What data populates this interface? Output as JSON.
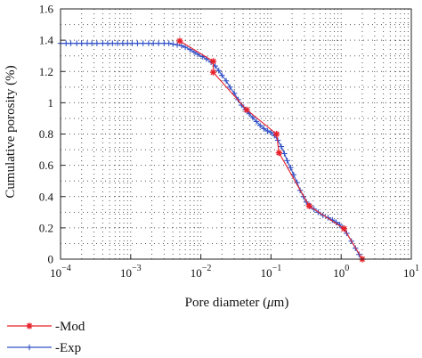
{
  "chart_data": {
    "type": "line",
    "title": "",
    "xlabel_prefix": "Pore diameter (",
    "xlabel_mu": "μ",
    "xlabel_suffix": "m)",
    "ylabel": "Cumulative porosity (%)",
    "x_scale": "log",
    "xlim": [
      0.0001,
      10
    ],
    "ylim": [
      0,
      1.6
    ],
    "x_ticks": [
      {
        "value": 0.0001,
        "base": "10",
        "exp": "−4"
      },
      {
        "value": 0.001,
        "base": "10",
        "exp": "−3"
      },
      {
        "value": 0.01,
        "base": "10",
        "exp": "−2"
      },
      {
        "value": 0.1,
        "base": "10",
        "exp": "−1"
      },
      {
        "value": 1,
        "base": "10",
        "exp": "0"
      },
      {
        "value": 10,
        "base": "10",
        "exp": "1"
      }
    ],
    "y_ticks": [
      {
        "value": 0,
        "label": "0"
      },
      {
        "value": 0.2,
        "label": "0.2"
      },
      {
        "value": 0.4,
        "label": "0.4"
      },
      {
        "value": 0.6,
        "label": "0.6"
      },
      {
        "value": 0.8,
        "label": "0.8"
      },
      {
        "value": 1.0,
        "label": "1"
      },
      {
        "value": 1.2,
        "label": "1.2"
      },
      {
        "value": 1.4,
        "label": "1.4"
      },
      {
        "value": 1.6,
        "label": "1.6"
      }
    ],
    "grid": "dotted minor",
    "legend_position": "bottom-left outside",
    "series": [
      {
        "name": "-Mod",
        "color": "#e8202a",
        "marker": "asterisk",
        "points": [
          [
            0.005,
            1.395
          ],
          [
            0.015,
            1.265
          ],
          [
            0.015,
            1.195
          ],
          [
            0.045,
            0.955
          ],
          [
            0.12,
            0.8
          ],
          [
            0.13,
            0.68
          ],
          [
            0.35,
            0.34
          ],
          [
            1.1,
            0.195
          ],
          [
            2.0,
            0.0
          ]
        ]
      },
      {
        "name": "-Exp",
        "color": "#3050c8",
        "marker": "plus",
        "points": [
          [
            0.0001,
            1.38
          ],
          [
            0.00012,
            1.38
          ],
          [
            0.00014,
            1.38
          ],
          [
            0.00017,
            1.38
          ],
          [
            0.0002,
            1.38
          ],
          [
            0.00024,
            1.38
          ],
          [
            0.00028,
            1.38
          ],
          [
            0.00033,
            1.38
          ],
          [
            0.0004,
            1.38
          ],
          [
            0.00047,
            1.38
          ],
          [
            0.00055,
            1.38
          ],
          [
            0.00065,
            1.38
          ],
          [
            0.00077,
            1.38
          ],
          [
            0.0009,
            1.38
          ],
          [
            0.00105,
            1.38
          ],
          [
            0.00125,
            1.38
          ],
          [
            0.0015,
            1.38
          ],
          [
            0.0018,
            1.38
          ],
          [
            0.0021,
            1.38
          ],
          [
            0.0025,
            1.38
          ],
          [
            0.003,
            1.38
          ],
          [
            0.0035,
            1.38
          ],
          [
            0.004,
            1.375
          ],
          [
            0.0046,
            1.37
          ],
          [
            0.0053,
            1.365
          ],
          [
            0.006,
            1.355
          ],
          [
            0.007,
            1.34
          ],
          [
            0.008,
            1.325
          ],
          [
            0.009,
            1.31
          ],
          [
            0.0105,
            1.295
          ],
          [
            0.012,
            1.28
          ],
          [
            0.014,
            1.26
          ],
          [
            0.016,
            1.235
          ],
          [
            0.018,
            1.205
          ],
          [
            0.02,
            1.175
          ],
          [
            0.023,
            1.14
          ],
          [
            0.026,
            1.1
          ],
          [
            0.03,
            1.06
          ],
          [
            0.034,
            1.02
          ],
          [
            0.038,
            0.985
          ],
          [
            0.043,
            0.955
          ],
          [
            0.049,
            0.93
          ],
          [
            0.055,
            0.905
          ],
          [
            0.062,
            0.88
          ],
          [
            0.07,
            0.855
          ],
          [
            0.079,
            0.835
          ],
          [
            0.089,
            0.82
          ],
          [
            0.1,
            0.81
          ],
          [
            0.112,
            0.79
          ],
          [
            0.125,
            0.76
          ],
          [
            0.14,
            0.72
          ],
          [
            0.155,
            0.675
          ],
          [
            0.17,
            0.63
          ],
          [
            0.19,
            0.585
          ],
          [
            0.21,
            0.54
          ],
          [
            0.235,
            0.49
          ],
          [
            0.26,
            0.44
          ],
          [
            0.29,
            0.4
          ],
          [
            0.32,
            0.365
          ],
          [
            0.36,
            0.34
          ],
          [
            0.41,
            0.32
          ],
          [
            0.47,
            0.3
          ],
          [
            0.55,
            0.28
          ],
          [
            0.65,
            0.265
          ],
          [
            0.75,
            0.25
          ],
          [
            0.85,
            0.235
          ],
          [
            0.95,
            0.22
          ],
          [
            1.05,
            0.2
          ],
          [
            1.2,
            0.165
          ],
          [
            1.4,
            0.115
          ],
          [
            1.6,
            0.07
          ],
          [
            1.8,
            0.03
          ],
          [
            2.0,
            0.0
          ]
        ]
      }
    ]
  }
}
